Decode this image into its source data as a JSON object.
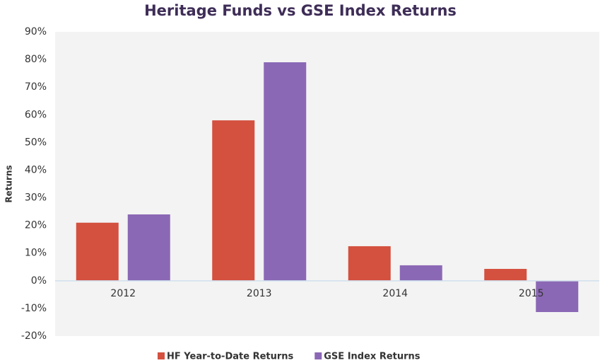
{
  "chart_data": {
    "type": "bar",
    "title": "Heritage Funds vs GSE Index Returns",
    "y_label": "Returns",
    "categories": [
      "2012",
      "2013",
      "2014",
      "2015"
    ],
    "series": [
      {
        "name": "HF Year-to-Date Returns",
        "color": "#d4503f",
        "values": [
          21,
          58,
          12.5,
          4.3
        ]
      },
      {
        "name": "GSE Index Returns",
        "color": "#8b68b5",
        "values": [
          24,
          79,
          5.6,
          -11.3
        ]
      }
    ],
    "ylim": [
      -20,
      90
    ],
    "yticks": [
      {
        "value": -20,
        "label": "-20%"
      },
      {
        "value": -10,
        "label": "-10%"
      },
      {
        "value": 0,
        "label": "0%"
      },
      {
        "value": 10,
        "label": "10%"
      },
      {
        "value": 20,
        "label": "20%"
      },
      {
        "value": 30,
        "label": "30%"
      },
      {
        "value": 40,
        "label": "40%"
      },
      {
        "value": 50,
        "label": "50%"
      },
      {
        "value": 60,
        "label": "60%"
      },
      {
        "value": 70,
        "label": "70%"
      },
      {
        "value": 80,
        "label": "80%"
      },
      {
        "value": 90,
        "label": "90%"
      }
    ],
    "grid": false,
    "legend": "bottom"
  }
}
